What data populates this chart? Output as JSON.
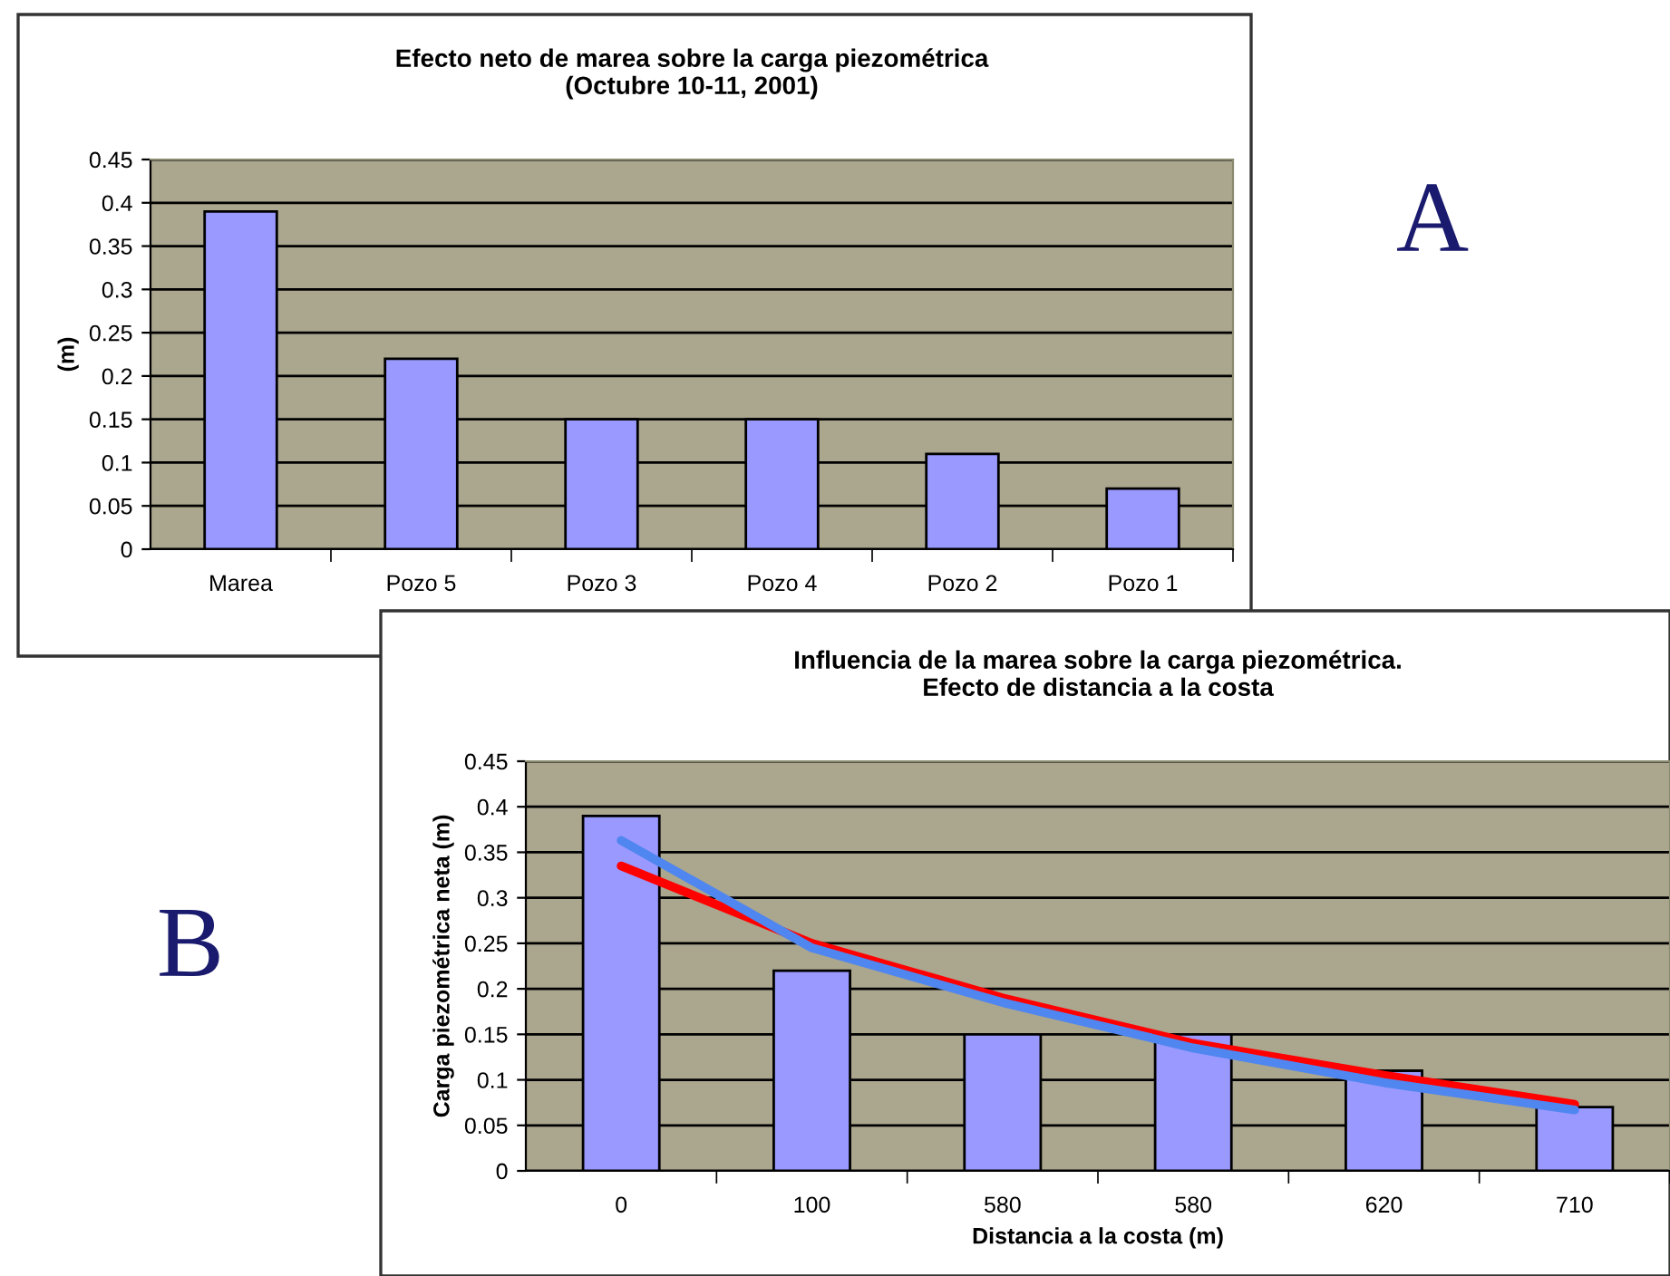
{
  "chart_data": [
    {
      "type": "bar",
      "title": "Efecto neto de marea sobre la carga piezométrica\n(Octubre 10-11, 2001)",
      "ylabel": "(m)",
      "categories": [
        "Marea",
        "Pozo 5",
        "Pozo 3",
        "Pozo 4",
        "Pozo 2",
        "Pozo 1"
      ],
      "series": [
        {
          "color": "#9999ff",
          "values": [
            0.39,
            0.22,
            0.15,
            0.15,
            0.11,
            0.07
          ]
        }
      ],
      "ylim": [
        0,
        0.45
      ],
      "yticks": [
        0,
        0.05,
        0.1,
        0.15,
        0.2,
        0.25,
        0.3,
        0.35,
        0.4,
        0.45
      ],
      "grid": "y",
      "legend": false,
      "annotations": [
        "A"
      ]
    },
    {
      "type": "bar",
      "title": "Influencia de la marea sobre la carga piezométrica.\nEfecto de distancia a la costa",
      "xlabel": "Distancia a la costa (m)",
      "ylabel": "Carga piezométrica neta (m)",
      "categories": [
        "0",
        "100",
        "580",
        "580",
        "620",
        "710"
      ],
      "series": [
        {
          "color": "#9999ff",
          "values": [
            0.39,
            0.22,
            0.15,
            0.15,
            0.11,
            0.07
          ]
        },
        {
          "type": "line",
          "color": "#ff0000",
          "values": [
            0.335,
            0.25,
            0.19,
            0.14,
            0.105,
            0.073
          ]
        },
        {
          "type": "line",
          "color": "#4f86f0",
          "values": [
            0.363,
            0.245,
            0.185,
            0.135,
            0.097,
            0.067
          ]
        }
      ],
      "ylim": [
        0,
        0.45
      ],
      "yticks": [
        0,
        0.05,
        0.1,
        0.15,
        0.2,
        0.25,
        0.3,
        0.35,
        0.4,
        0.45
      ],
      "grid": "y",
      "legend": false,
      "annotations": [
        "B"
      ]
    }
  ]
}
